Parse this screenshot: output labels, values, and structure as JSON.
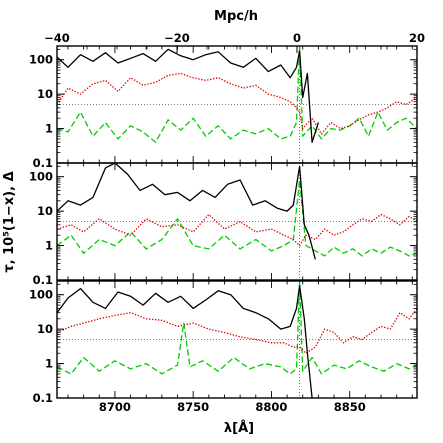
{
  "chart_data": {
    "type": "line",
    "xlabel": "λ[Å]",
    "ylabel": "τ, 10⁵(1−x), Δ",
    "top_axis_label": "Mpc/h",
    "xlim": [
      8663,
      8893
    ],
    "x_ticks": [
      8700,
      8750,
      8800,
      8850
    ],
    "top_axis_range": [
      -40,
      20
    ],
    "top_axis_ticks": [
      -40,
      -20,
      0,
      20
    ],
    "yscale": "log",
    "ylim": [
      0.1,
      250
    ],
    "y_ticks": [
      0.1,
      1,
      10,
      100
    ],
    "y_tick_labels": [
      "0.1",
      "1",
      "10",
      "100"
    ],
    "reference_lines": {
      "horizontal_y": 5,
      "vertical_x": 8818,
      "style": "dotted"
    },
    "series_styles": [
      {
        "key": "solid",
        "color": "#000000",
        "dash": ""
      },
      {
        "key": "dotted",
        "color": "#e00000",
        "dash": "1.4,1.6"
      },
      {
        "key": "dashed",
        "color": "#00cc00",
        "dash": "6,3"
      }
    ],
    "panels": [
      {
        "series": [
          {
            "style": "solid",
            "x": [
              8663,
              8670,
              8678,
              8686,
              8694,
              8702,
              8710,
              8718,
              8726,
              8734,
              8742,
              8750,
              8758,
              8766,
              8774,
              8782,
              8790,
              8798,
              8806,
              8812,
              8816,
              8818,
              8820,
              8823,
              8826,
              8830
            ],
            "y": [
              120,
              60,
              140,
              90,
              160,
              80,
              110,
              150,
              90,
              200,
              130,
              100,
              140,
              170,
              80,
              60,
              110,
              45,
              70,
              30,
              60,
              180,
              8,
              40,
              0.4,
              1.5
            ]
          },
          {
            "style": "dotted",
            "x": [
              8663,
              8670,
              8678,
              8686,
              8694,
              8702,
              8710,
              8718,
              8726,
              8734,
              8742,
              8750,
              8758,
              8766,
              8774,
              8782,
              8790,
              8798,
              8806,
              8812,
              8816,
              8818,
              8820,
              8826,
              8832,
              8838,
              8844,
              8850,
              8856,
              8862,
              8868,
              8874,
              8880,
              8886,
              8893
            ],
            "y": [
              5,
              15,
              10,
              20,
              25,
              12,
              30,
              18,
              22,
              35,
              40,
              30,
              25,
              30,
              20,
              15,
              18,
              10,
              8,
              6,
              4,
              3,
              1,
              2,
              0.7,
              1.5,
              1,
              1.2,
              1.8,
              2.5,
              3,
              4,
              6,
              5,
              8
            ]
          },
          {
            "style": "dashed",
            "x": [
              8663,
              8670,
              8678,
              8686,
              8694,
              8702,
              8710,
              8718,
              8726,
              8734,
              8742,
              8750,
              8758,
              8766,
              8774,
              8782,
              8790,
              8798,
              8806,
              8812,
              8816,
              8818,
              8820,
              8826,
              8832,
              8838,
              8844,
              8850,
              8856,
              8862,
              8868,
              8874,
              8880,
              8886,
              8893
            ],
            "y": [
              1,
              0.8,
              3,
              0.6,
              1.5,
              0.5,
              1.2,
              0.8,
              0.4,
              1.8,
              0.9,
              2,
              0.6,
              1.2,
              0.5,
              0.9,
              0.7,
              1,
              0.5,
              0.6,
              1.5,
              300,
              0.6,
              1.2,
              0.5,
              1,
              0.9,
              1.2,
              2,
              0.6,
              3,
              0.9,
              1.5,
              2,
              1
            ]
          }
        ]
      },
      {
        "series": [
          {
            "style": "solid",
            "x": [
              8663,
              8670,
              8678,
              8686,
              8694,
              8700,
              8708,
              8716,
              8724,
              8732,
              8740,
              8748,
              8756,
              8764,
              8772,
              8780,
              8788,
              8796,
              8804,
              8810,
              8814,
              8818,
              8821,
              8824,
              8828
            ],
            "y": [
              10,
              20,
              15,
              25,
              180,
              300,
              120,
              40,
              60,
              30,
              35,
              20,
              40,
              25,
              60,
              80,
              15,
              20,
              12,
              10,
              15,
              200,
              4,
              2,
              0.4
            ]
          },
          {
            "style": "dotted",
            "x": [
              8663,
              8672,
              8680,
              8690,
              8700,
              8710,
              8720,
              8730,
              8740,
              8750,
              8760,
              8770,
              8780,
              8790,
              8800,
              8808,
              8814,
              8818,
              8822,
              8828,
              8834,
              8840,
              8846,
              8852,
              8858,
              8864,
              8870,
              8876,
              8882,
              8888,
              8893
            ],
            "y": [
              3,
              4,
              2.5,
              6,
              3,
              2,
              6,
              3.5,
              4,
              2.5,
              8,
              3,
              5,
              2.5,
              3,
              2,
              1.5,
              1,
              2,
              1.5,
              3,
              2,
              2.5,
              4,
              6,
              5,
              8,
              6,
              4,
              7,
              5
            ]
          },
          {
            "style": "dashed",
            "x": [
              8663,
              8672,
              8680,
              8690,
              8700,
              8710,
              8720,
              8730,
              8740,
              8750,
              8760,
              8770,
              8780,
              8790,
              8800,
              8808,
              8814,
              8818,
              8822,
              8828,
              8834,
              8840,
              8846,
              8852,
              8858,
              8864,
              8870,
              8876,
              8882,
              8888,
              8893
            ],
            "y": [
              1,
              2,
              0.6,
              1.5,
              1,
              2.5,
              0.8,
              1.5,
              6,
              1,
              0.8,
              2,
              0.8,
              1.5,
              0.7,
              1,
              1.5,
              80,
              1,
              0.7,
              0.5,
              0.9,
              0.6,
              0.8,
              0.5,
              0.8,
              0.6,
              0.9,
              0.7,
              0.5,
              0.6
            ]
          }
        ]
      },
      {
        "series": [
          {
            "style": "solid",
            "x": [
              8663,
              8670,
              8678,
              8686,
              8694,
              8702,
              8710,
              8718,
              8726,
              8734,
              8742,
              8750,
              8758,
              8766,
              8774,
              8782,
              8790,
              8798,
              8806,
              8812,
              8816,
              8818,
              8821,
              8823,
              8826
            ],
            "y": [
              30,
              80,
              150,
              60,
              40,
              120,
              90,
              50,
              110,
              60,
              90,
              40,
              70,
              130,
              100,
              40,
              30,
              20,
              10,
              12,
              40,
              180,
              20,
              2,
              0.1
            ]
          },
          {
            "style": "dotted",
            "x": [
              8663,
              8672,
              8680,
              8690,
              8700,
              8710,
              8720,
              8730,
              8740,
              8750,
              8760,
              8770,
              8780,
              8790,
              8800,
              8808,
              8814,
              8818,
              8822,
              8828,
              8834,
              8840,
              8846,
              8852,
              8858,
              8864,
              8870,
              8876,
              8882,
              8888,
              8893
            ],
            "y": [
              8,
              12,
              15,
              20,
              25,
              30,
              20,
              18,
              12,
              15,
              10,
              8,
              6,
              5,
              4,
              4,
              3,
              3,
              2,
              3,
              10,
              8,
              4,
              6,
              5,
              8,
              12,
              10,
              30,
              20,
              40
            ]
          },
          {
            "style": "dashed",
            "x": [
              8663,
              8672,
              8680,
              8690,
              8700,
              8710,
              8720,
              8730,
              8740,
              8744,
              8748,
              8756,
              8766,
              8776,
              8786,
              8796,
              8806,
              8812,
              8816,
              8818,
              8820,
              8826,
              8832,
              8840,
              8848,
              8856,
              8864,
              8872,
              8880,
              8888,
              8893
            ],
            "y": [
              0.8,
              0.5,
              1.5,
              0.6,
              1.2,
              0.7,
              1,
              0.5,
              0.9,
              15,
              0.8,
              1.2,
              0.6,
              1.5,
              0.7,
              1,
              0.8,
              0.5,
              0.7,
              250,
              0.6,
              1.5,
              0.5,
              0.9,
              0.7,
              1.2,
              0.8,
              0.6,
              1,
              0.7,
              0.9
            ]
          }
        ]
      }
    ]
  }
}
